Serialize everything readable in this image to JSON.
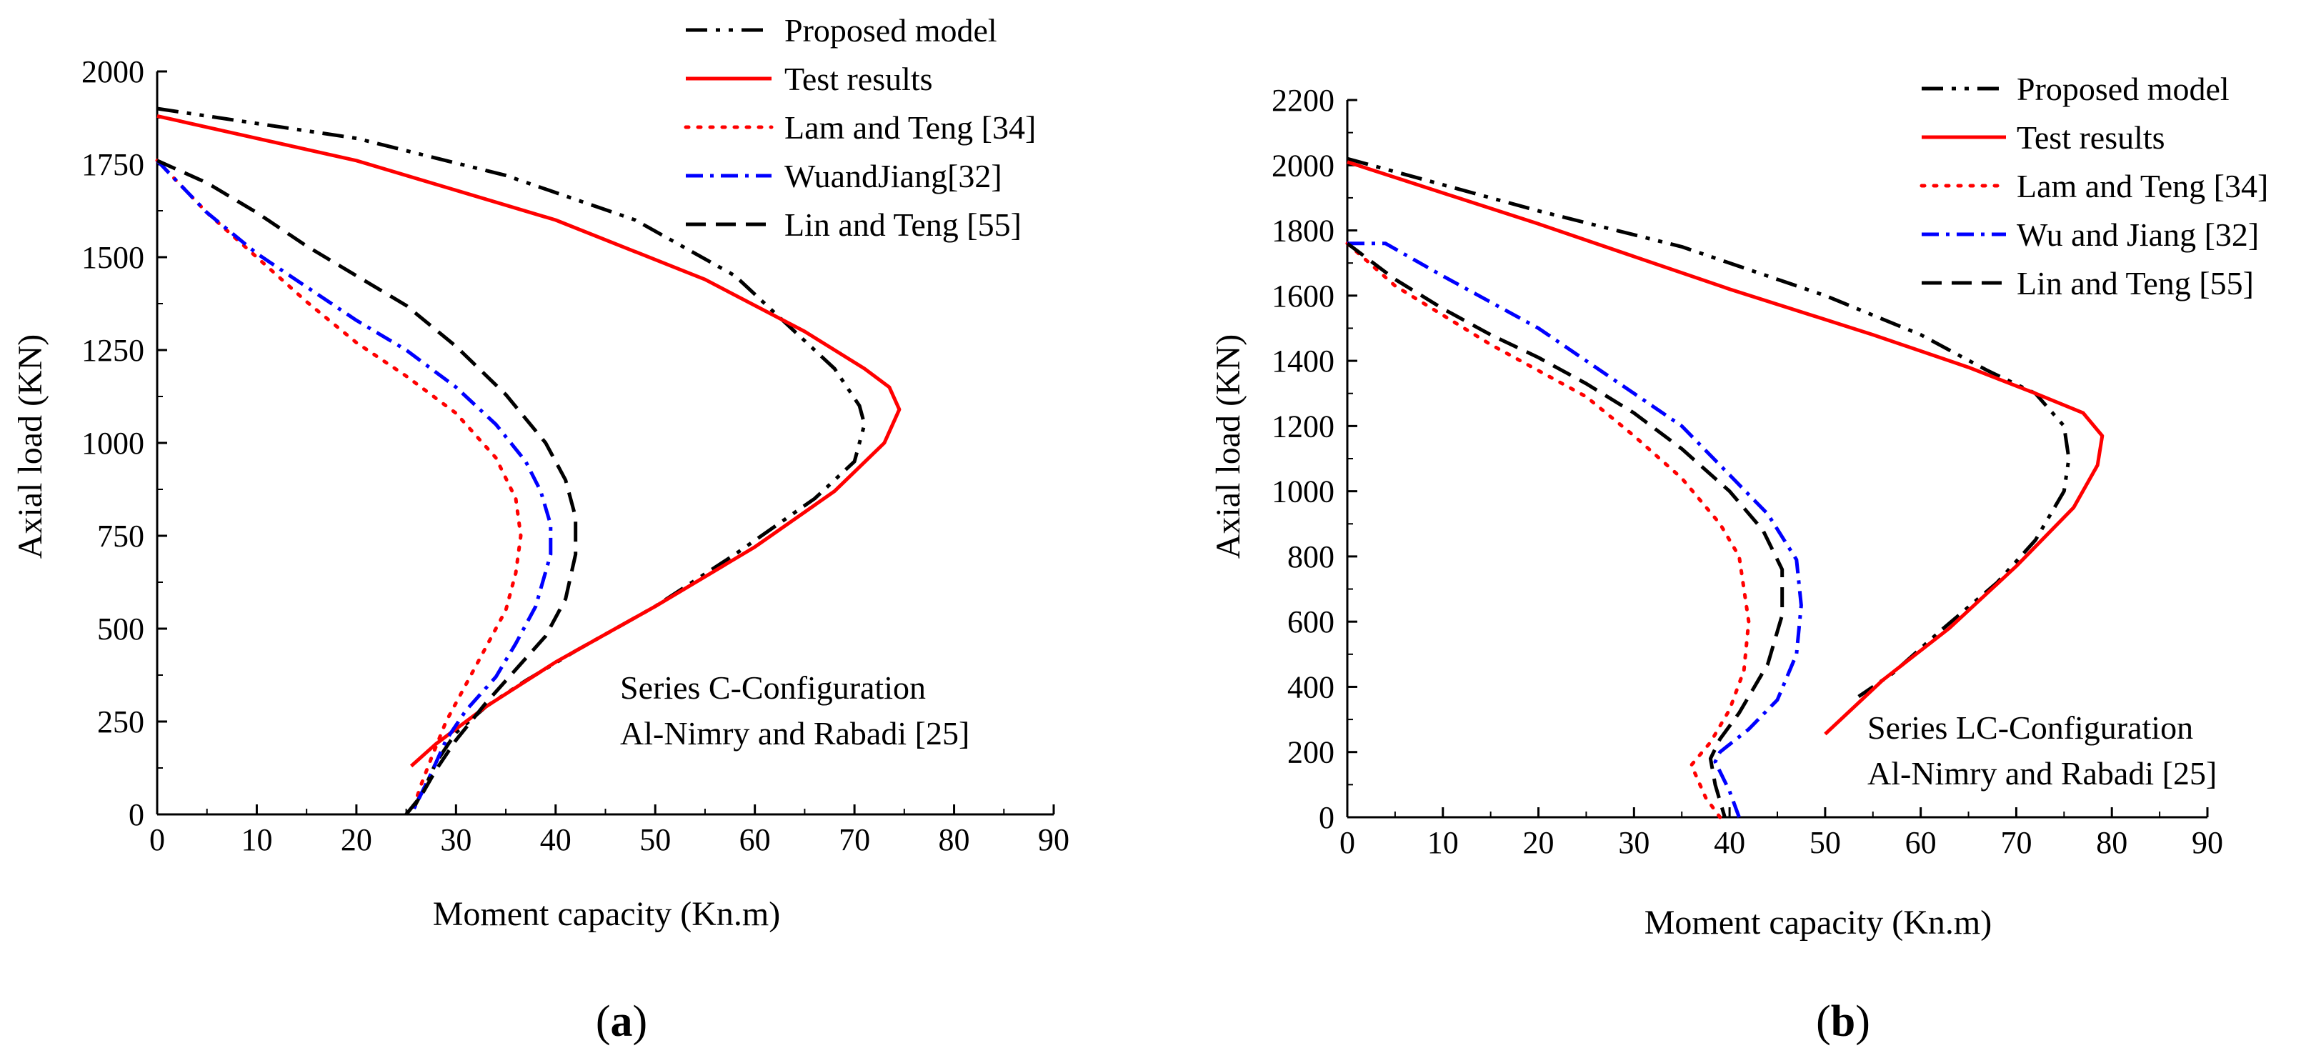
{
  "chart_data": [
    {
      "type": "line",
      "panel_label": "(a)",
      "panel_letter": "a",
      "xlabel": "Moment capacity (Kn.m)",
      "ylabel": "Axial load (KN)",
      "xlim": [
        0,
        90
      ],
      "ylim": [
        0,
        2000
      ],
      "xticks": [
        0,
        10,
        20,
        30,
        40,
        50,
        60,
        70,
        80,
        90
      ],
      "yticks": [
        0,
        250,
        500,
        750,
        1000,
        1250,
        1500,
        1750,
        2000
      ],
      "annotation": [
        "Series C-Configuration",
        "Al-Nimry and Rabadi [25]"
      ],
      "legend_position": "top-right",
      "series": [
        {
          "name": "Proposed model",
          "color": "#000000",
          "dash": "30,12,6,12,6,12",
          "x": [
            0,
            20,
            35,
            48,
            58,
            64,
            68,
            70.5,
            71,
            70,
            66,
            58,
            50,
            42,
            37,
            33,
            30,
            28,
            27,
            26,
            25.5
          ],
          "y": [
            1900,
            1820,
            1720,
            1600,
            1450,
            1300,
            1200,
            1100,
            1050,
            950,
            850,
            700,
            560,
            440,
            360,
            290,
            220,
            140,
            80,
            30,
            0
          ]
        },
        {
          "name": "Test results",
          "color": "#ff0000",
          "dash": "",
          "x": [
            0,
            20,
            40,
            55,
            65,
            71,
            73.5,
            74.5,
            73,
            68,
            60,
            50,
            40,
            33,
            28,
            25.5
          ],
          "y": [
            1880,
            1760,
            1600,
            1440,
            1300,
            1200,
            1150,
            1090,
            1000,
            870,
            720,
            560,
            410,
            290,
            190,
            130
          ]
        },
        {
          "name": "Lam and Teng [34]",
          "color": "#ff0000",
          "dash": "4,13",
          "x": [
            0,
            5,
            10,
            15,
            20,
            25,
            30,
            34,
            36,
            36.5,
            36,
            35,
            33,
            31,
            29,
            27.5,
            26.5,
            25.5
          ],
          "y": [
            1760,
            1620,
            1500,
            1380,
            1270,
            1180,
            1080,
            960,
            850,
            750,
            650,
            550,
            450,
            350,
            250,
            150,
            80,
            0
          ]
        },
        {
          "name": "WuandJiang[32]",
          "color": "#0000ff",
          "dash": "24,10,5,10",
          "x": [
            0,
            5,
            10,
            15,
            20,
            25,
            30,
            34,
            37,
            38.5,
            39.5,
            39.5,
            38,
            36,
            34,
            31,
            29,
            27.5,
            25.5
          ],
          "y": [
            1760,
            1620,
            1510,
            1420,
            1330,
            1250,
            1150,
            1050,
            950,
            870,
            780,
            700,
            560,
            460,
            370,
            280,
            200,
            110,
            0
          ]
        },
        {
          "name": "Lin and Teng [55]",
          "color": "#000000",
          "dash": "28,14",
          "x": [
            0,
            5,
            10,
            15,
            20,
            25,
            30,
            35,
            39,
            41,
            42,
            42,
            41,
            39,
            36,
            33,
            30,
            28,
            26.5,
            25
          ],
          "y": [
            1760,
            1700,
            1620,
            1530,
            1450,
            1370,
            1260,
            1130,
            1000,
            900,
            800,
            700,
            580,
            480,
            390,
            300,
            200,
            120,
            50,
            0
          ]
        }
      ]
    },
    {
      "type": "line",
      "panel_label": "(b)",
      "panel_letter": "b",
      "xlabel": "Moment capacity (Kn.m)",
      "ylabel": "Axial load (KN)",
      "xlim": [
        0,
        90
      ],
      "ylim": [
        0,
        2200
      ],
      "xticks": [
        0,
        10,
        20,
        30,
        40,
        50,
        60,
        70,
        80,
        90
      ],
      "yticks": [
        0,
        200,
        400,
        600,
        800,
        1000,
        1200,
        1400,
        1600,
        1800,
        2000,
        2200
      ],
      "annotation": [
        "Series LC-Configuration",
        "Al-Nimry and Rabadi [25]"
      ],
      "legend_position": "top-right",
      "series": [
        {
          "name": "Proposed model",
          "color": "#000000",
          "dash": "30,12,6,12,6,12",
          "x": [
            0,
            20,
            35,
            50,
            60,
            67,
            72,
            75,
            75.5,
            75,
            72,
            68,
            62,
            57,
            53.5
          ],
          "y": [
            2020,
            1860,
            1750,
            1600,
            1480,
            1370,
            1300,
            1200,
            1100,
            1000,
            850,
            720,
            570,
            440,
            370
          ]
        },
        {
          "name": "Test results",
          "color": "#ff0000",
          "dash": "",
          "x": [
            0,
            20,
            40,
            55,
            65,
            72,
            77,
            79,
            78.5,
            76,
            70,
            63,
            56,
            50
          ],
          "y": [
            2010,
            1820,
            1620,
            1480,
            1380,
            1300,
            1240,
            1170,
            1080,
            950,
            770,
            580,
            420,
            255
          ]
        },
        {
          "name": "Lam and Teng [34]",
          "color": "#ff0000",
          "dash": "4,13",
          "x": [
            0,
            5,
            10,
            15,
            20,
            25,
            30,
            35,
            39,
            41,
            42,
            41.5,
            40,
            38,
            36,
            37.5,
            39
          ],
          "y": [
            1760,
            1630,
            1540,
            1450,
            1370,
            1290,
            1170,
            1040,
            900,
            800,
            600,
            450,
            330,
            230,
            160,
            60,
            0
          ]
        },
        {
          "name": "Wu and Jiang [32]",
          "color": "#0000ff",
          "dash": "24,10,5,10",
          "x": [
            0,
            4,
            10,
            20,
            30,
            35,
            40,
            44,
            47,
            47.5,
            47,
            45,
            42,
            39,
            38.5,
            40,
            41
          ],
          "y": [
            1760,
            1760,
            1660,
            1500,
            1300,
            1200,
            1050,
            930,
            790,
            650,
            500,
            360,
            270,
            200,
            170,
            80,
            0
          ]
        },
        {
          "name": "Lin and Teng [55]",
          "color": "#000000",
          "dash": "28,14",
          "x": [
            0,
            5,
            10,
            15,
            20,
            25,
            30,
            35,
            40,
            43.5,
            45.5,
            45.5,
            44,
            41,
            39,
            38,
            38.5,
            39.5
          ],
          "y": [
            1760,
            1650,
            1560,
            1480,
            1410,
            1330,
            1240,
            1130,
            1000,
            880,
            760,
            620,
            470,
            320,
            240,
            180,
            100,
            0
          ]
        }
      ]
    }
  ]
}
